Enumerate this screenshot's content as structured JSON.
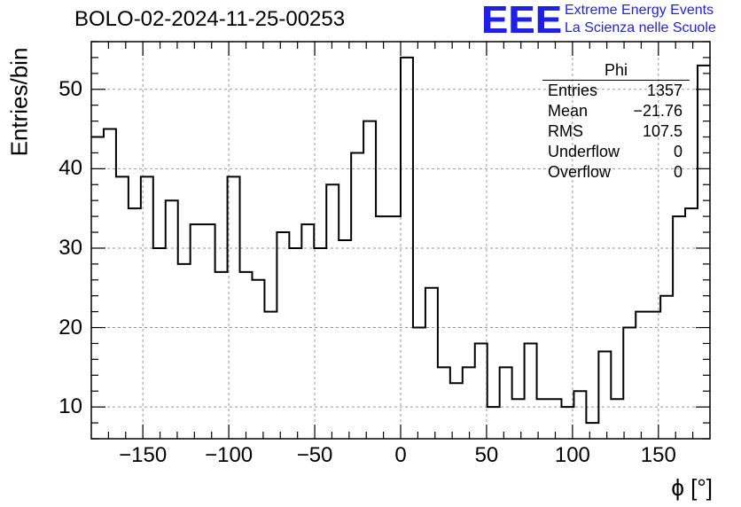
{
  "title": "BOLO-02-2024-11-25-00253",
  "logo": {
    "mark": "EEE",
    "line1": "Extreme Energy Events",
    "line2": "La Scienza nelle Scuole",
    "color": "#1f1fe6"
  },
  "stats": {
    "name": "Phi",
    "rows": [
      {
        "label": "Entries",
        "value": "1357"
      },
      {
        "label": "Mean",
        "value": "−21.76"
      },
      {
        "label": "RMS",
        "value": "107.5"
      },
      {
        "label": "Underflow",
        "value": "0"
      },
      {
        "label": "Overflow",
        "value": "0"
      }
    ]
  },
  "chart_data": {
    "type": "histogram",
    "title": "BOLO-02-2024-11-25-00253",
    "xlabel": "ϕ [°]",
    "ylabel": "Entries/bin",
    "xlim": [
      -180,
      180
    ],
    "ylim": [
      6,
      56
    ],
    "grid": true,
    "bin_width": 7.2,
    "x_ticks": [
      -150,
      -100,
      -50,
      0,
      50,
      100,
      150
    ],
    "x_tick_labels": [
      "−150",
      "−100",
      "−50",
      "0",
      "50",
      "100",
      "150"
    ],
    "y_ticks": [
      10,
      20,
      30,
      40,
      50
    ],
    "y_tick_labels": [
      "10",
      "20",
      "30",
      "40",
      "50"
    ],
    "values": [
      44,
      45,
      39,
      35,
      39,
      30,
      36,
      28,
      33,
      33,
      27,
      39,
      27,
      26,
      22,
      32,
      30,
      33,
      30,
      38,
      31,
      42,
      46,
      34,
      34,
      54,
      20,
      25,
      15,
      13,
      15,
      18,
      10,
      15,
      11,
      18,
      11,
      11,
      10,
      12,
      8,
      17,
      11,
      20,
      22,
      22,
      24,
      34,
      35,
      53
    ],
    "line_color": "#000000"
  }
}
